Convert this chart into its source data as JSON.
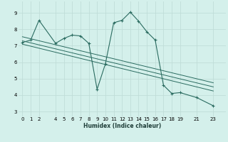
{
  "xlabel": "Humidex (Indice chaleur)",
  "background_color": "#d4f0eb",
  "grid_color": "#c0ddd8",
  "line_color": "#2a6b60",
  "xlim": [
    -0.5,
    24.5
  ],
  "ylim": [
    2.7,
    9.7
  ],
  "xticks": [
    0,
    1,
    2,
    4,
    5,
    6,
    7,
    8,
    9,
    10,
    11,
    12,
    13,
    14,
    15,
    16,
    17,
    18,
    19,
    21,
    23
  ],
  "yticks": [
    3,
    4,
    5,
    6,
    7,
    8,
    9
  ],
  "lines": [
    {
      "x": [
        0,
        1,
        2,
        4,
        5,
        6,
        7,
        8,
        9,
        10,
        11,
        12,
        13,
        14,
        15,
        16,
        17,
        18,
        19,
        21,
        23
      ],
      "y": [
        7.2,
        7.35,
        8.55,
        7.15,
        7.45,
        7.65,
        7.6,
        7.15,
        4.35,
        5.9,
        8.4,
        8.55,
        9.05,
        8.5,
        7.85,
        7.35,
        4.6,
        4.1,
        4.15,
        3.85,
        3.35
      ],
      "marker": true
    },
    {
      "x": [
        0,
        23
      ],
      "y": [
        7.55,
        4.75
      ],
      "marker": false
    },
    {
      "x": [
        0,
        23
      ],
      "y": [
        7.3,
        4.5
      ],
      "marker": false
    },
    {
      "x": [
        0,
        23
      ],
      "y": [
        7.1,
        4.25
      ],
      "marker": false
    }
  ]
}
